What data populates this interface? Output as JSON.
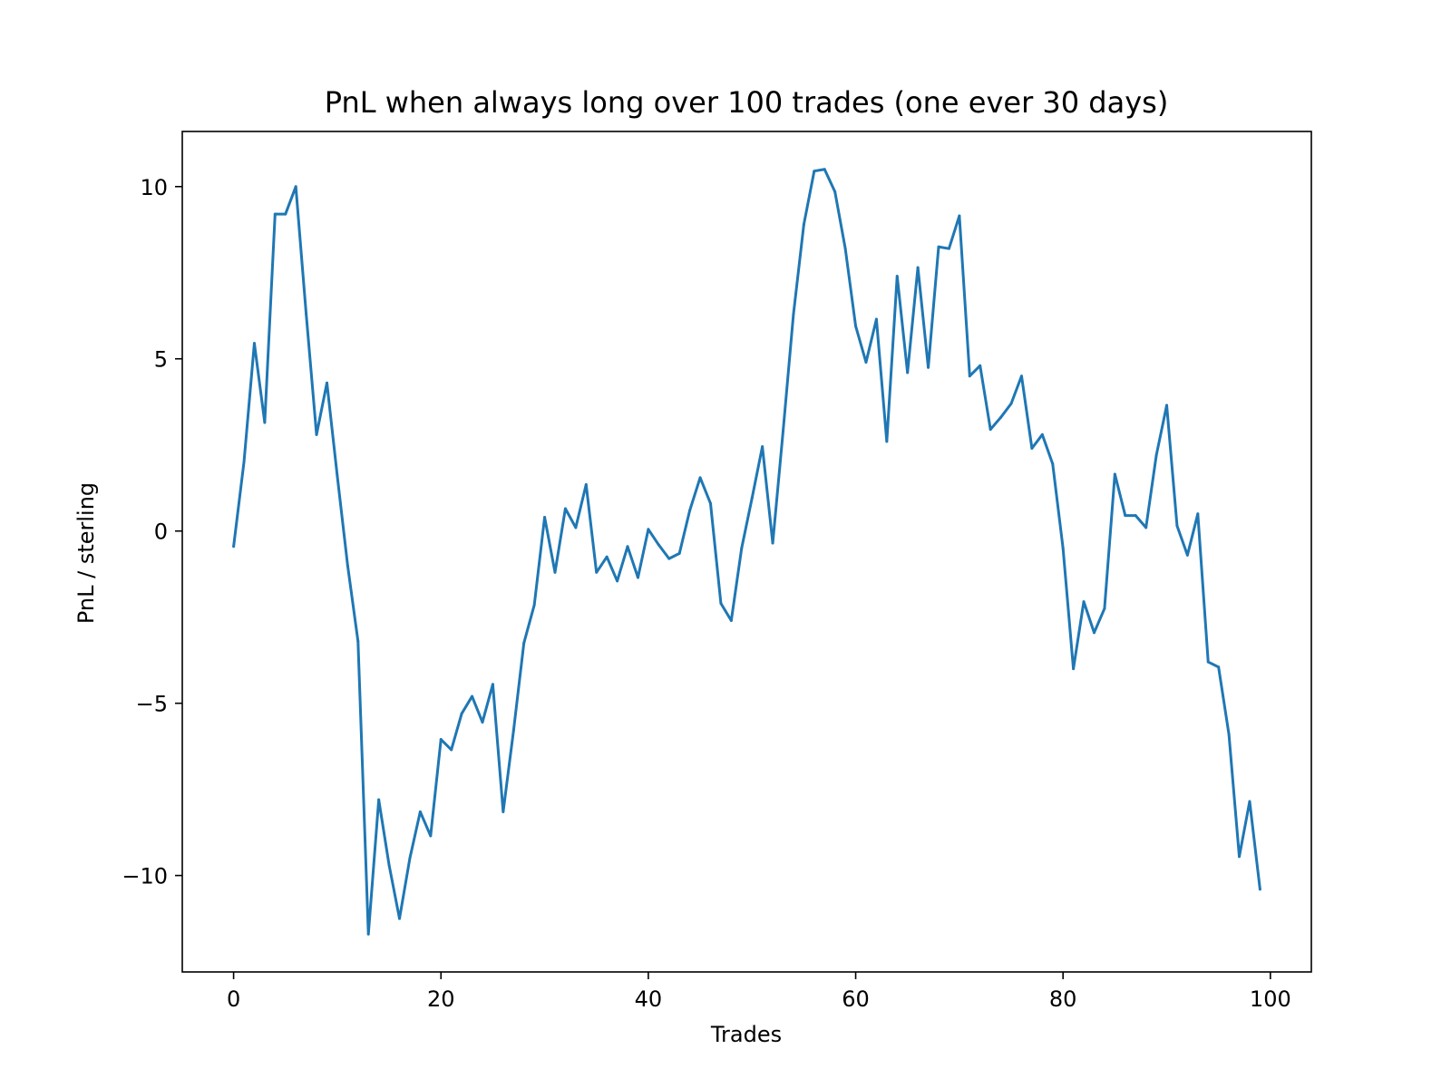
{
  "chart_data": {
    "type": "line",
    "title": "PnL when always long over 100 trades (one ever 30 days)",
    "xlabel": "Trades",
    "ylabel": "PnL / sterling",
    "xlim": [
      -4.95,
      103.95
    ],
    "ylim": [
      -12.8,
      11.6
    ],
    "xticks": [
      0,
      20,
      40,
      60,
      80,
      100
    ],
    "yticks": [
      -10,
      -5,
      0,
      5,
      10
    ],
    "xtick_labels": [
      "0",
      "20",
      "40",
      "60",
      "80",
      "100"
    ],
    "ytick_labels": [
      "−10",
      "−5",
      "0",
      "5",
      "10"
    ],
    "grid": false,
    "legend": "none",
    "series": [
      {
        "color": "#1f77b4",
        "x": [
          0,
          1,
          2,
          3,
          4,
          5,
          6,
          7,
          8,
          9,
          10,
          11,
          12,
          13,
          14,
          15,
          16,
          17,
          18,
          19,
          20,
          21,
          22,
          23,
          24,
          25,
          26,
          27,
          28,
          29,
          30,
          31,
          32,
          33,
          34,
          35,
          36,
          37,
          38,
          39,
          40,
          41,
          42,
          43,
          44,
          45,
          46,
          47,
          48,
          49,
          50,
          51,
          52,
          53,
          54,
          55,
          56,
          57,
          58,
          59,
          60,
          61,
          62,
          63,
          64,
          65,
          66,
          67,
          68,
          69,
          70,
          71,
          72,
          73,
          74,
          75,
          76,
          77,
          78,
          79,
          80,
          81,
          82,
          83,
          84,
          85,
          86,
          87,
          88,
          89,
          90,
          91,
          92,
          93,
          94,
          95,
          96,
          97,
          98,
          99
        ],
        "y": [
          -0.45,
          2.0,
          5.45,
          3.15,
          9.2,
          9.2,
          10.0,
          6.3,
          2.8,
          4.3,
          1.6,
          -1.0,
          -3.2,
          -11.7,
          -7.8,
          -9.7,
          -11.25,
          -9.5,
          -8.15,
          -8.85,
          -6.05,
          -6.35,
          -5.3,
          -4.8,
          -5.55,
          -4.45,
          -8.15,
          -5.8,
          -3.25,
          -2.15,
          0.4,
          -1.2,
          0.65,
          0.1,
          1.35,
          -1.2,
          -0.75,
          -1.45,
          -0.45,
          -1.35,
          0.05,
          -0.4,
          -0.8,
          -0.65,
          0.6,
          1.55,
          0.8,
          -2.1,
          -2.6,
          -0.5,
          0.95,
          2.45,
          -0.35,
          2.9,
          6.3,
          8.9,
          10.45,
          10.5,
          9.85,
          8.2,
          5.95,
          4.9,
          6.15,
          2.6,
          7.4,
          4.6,
          7.65,
          4.75,
          8.25,
          8.2,
          9.15,
          4.5,
          4.8,
          2.95,
          3.3,
          3.7,
          4.5,
          2.4,
          2.8,
          1.95,
          -0.5,
          -4.0,
          -2.05,
          -2.95,
          -2.25,
          1.65,
          0.45,
          0.45,
          0.1,
          2.2,
          3.65,
          0.15,
          -0.7,
          0.5,
          -3.8,
          -3.95,
          -5.9,
          -9.45,
          -7.85,
          -10.4
        ]
      }
    ]
  }
}
